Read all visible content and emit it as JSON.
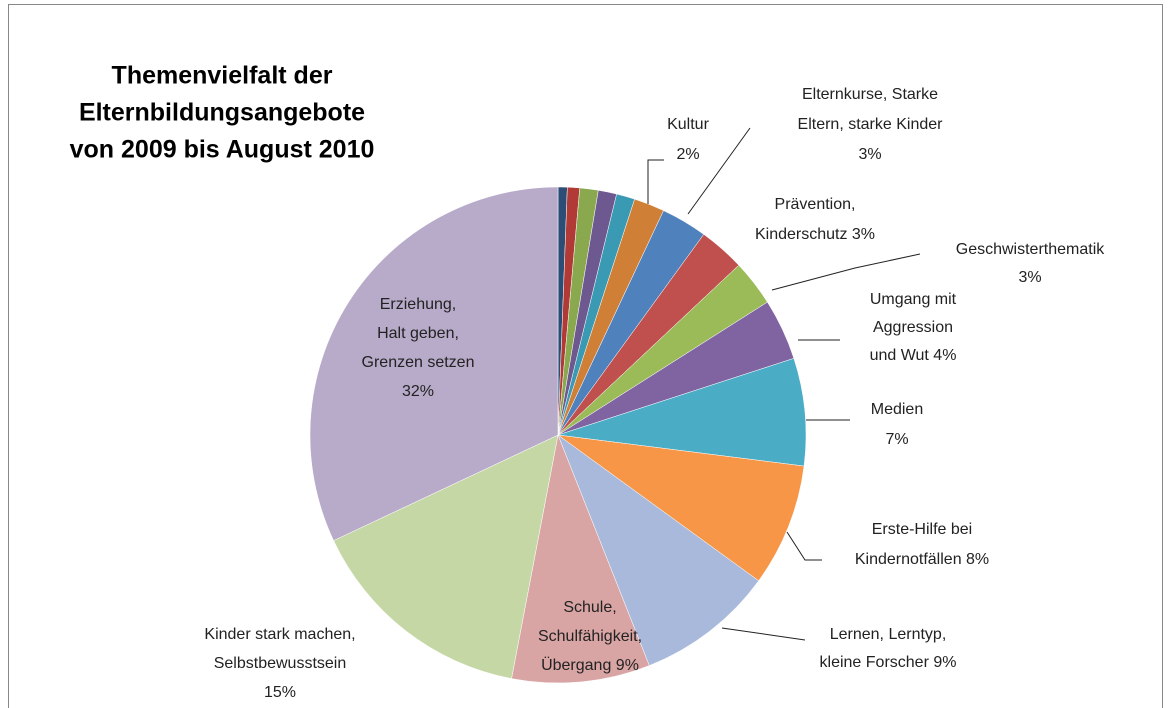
{
  "chart_data": {
    "type": "pie",
    "title": [
      "Themenvielfalt der",
      "Elternbildungsangebote",
      "von 2009 bis August 2010"
    ],
    "labels": [
      null,
      null,
      null,
      null,
      null,
      [
        "Kultur",
        "2%"
      ],
      [
        "Elternkurse, Starke",
        "Eltern, starke Kinder",
        "3%"
      ],
      [
        "Prävention,",
        "Kinderschutz  3%"
      ],
      [
        "Geschwisterthematik",
        "3%"
      ],
      [
        "Umgang mit",
        "Aggression",
        "und Wut 4%"
      ],
      [
        "Medien",
        "7%"
      ],
      [
        "Erste-Hilfe bei",
        "Kindernotfällen  8%"
      ],
      [
        "Lernen, Lerntyp,",
        "kleine Forscher 9%"
      ],
      [
        "Schule,",
        "Schulfähigkeit,",
        "Übergang 9%"
      ],
      [
        "Kinder stark machen,",
        "Selbstbewusstsein",
        "15%"
      ],
      [
        "Erziehung,",
        "Halt geben,",
        "Grenzen setzen",
        "32%"
      ]
    ],
    "values": [
      0.6,
      0.8,
      1.2,
      1.2,
      1.2,
      2,
      3,
      3,
      3,
      4,
      7,
      8,
      9,
      9,
      15,
      32
    ],
    "colors": [
      "#2c4d75",
      "#b13a36",
      "#8aa84e",
      "#6e5890",
      "#3b9ab3",
      "#d07f36",
      "#4f81bd",
      "#c0504d",
      "#9bbb59",
      "#8064a2",
      "#4bacc6",
      "#f79646",
      "#a9b9dc",
      "#d9a5a4",
      "#c6d7a6",
      "#b8abca"
    ]
  }
}
